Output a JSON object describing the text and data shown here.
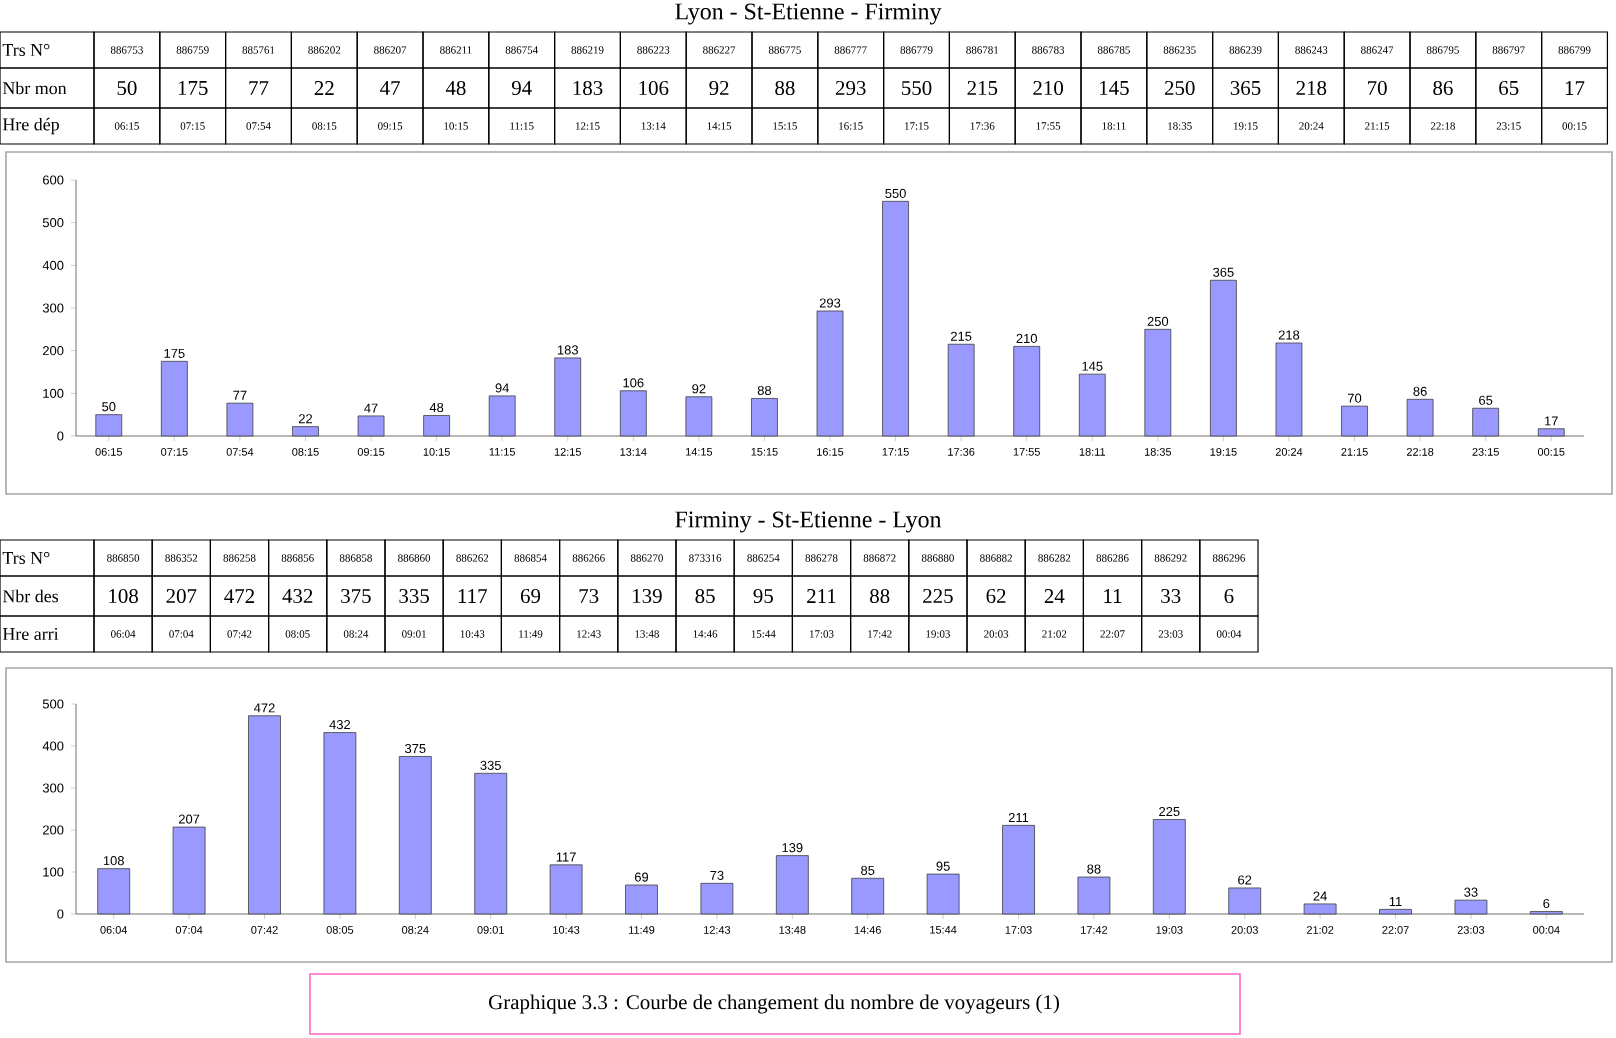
{
  "chart_data": [
    {
      "type": "bar",
      "title": "Lyon - St-Etienne - Firminy",
      "categories": [
        "06:15",
        "07:15",
        "07:54",
        "08:15",
        "09:15",
        "10:15",
        "11:15",
        "12:15",
        "13:14",
        "14:15",
        "15:15",
        "16:15",
        "17:15",
        "17:36",
        "17:55",
        "18:11",
        "18:35",
        "19:15",
        "20:24",
        "21:15",
        "22:18",
        "23:15",
        "00:15"
      ],
      "values": [
        50,
        175,
        77,
        22,
        47,
        48,
        94,
        183,
        106,
        92,
        88,
        293,
        550,
        215,
        210,
        145,
        250,
        365,
        218,
        70,
        86,
        65,
        17
      ],
      "color": "#9999ff",
      "ylim": [
        0,
        600
      ],
      "yticks": [
        0,
        100,
        200,
        300,
        400,
        500,
        600
      ],
      "data_labels": true,
      "annotations": [
        "Trs N°",
        "Nbr mon",
        "Hre dép",
        "886753",
        "886759",
        "885761",
        "886202",
        "886207",
        "886211",
        "886754",
        "886219",
        "886223",
        "886227",
        "886775",
        "886777",
        "886779",
        "886781",
        "886783",
        "886785",
        "886235",
        "886239",
        "886243",
        "886247",
        "886795",
        "886797",
        "886799",
        "50",
        "175",
        "77",
        "22",
        "47",
        "48",
        "94",
        "183",
        "106",
        "92",
        "88",
        "293",
        "550",
        "215",
        "210",
        "145",
        "250",
        "365",
        "218",
        "70",
        "86",
        "65",
        "17"
      ]
    },
    {
      "type": "bar",
      "title": "Firminy - St-Etienne - Lyon",
      "categories": [
        "06:04",
        "07:04",
        "07:42",
        "08:05",
        "08:24",
        "09:01",
        "10:43",
        "11:49",
        "12:43",
        "13:48",
        "14:46",
        "15:44",
        "17:03",
        "17:42",
        "19:03",
        "20:03",
        "21:02",
        "22:07",
        "23:03",
        "00:04"
      ],
      "values": [
        108,
        207,
        472,
        432,
        375,
        335,
        117,
        69,
        73,
        139,
        85,
        95,
        211,
        88,
        225,
        62,
        24,
        11,
        33,
        6
      ],
      "color": "#9999ff",
      "ylim": [
        0,
        500
      ],
      "yticks": [
        0,
        100,
        200,
        300,
        400,
        500
      ],
      "data_labels": true,
      "annotations": [
        "Trs N°",
        "Nbr des",
        "Hre arri",
        "886850",
        "886352",
        "886258",
        "886856",
        "886858",
        "886860",
        "886262",
        "886854",
        "886266",
        "886270",
        "873316",
        "886254",
        "886278",
        "886872",
        "886880",
        "886882",
        "886282",
        "886286",
        "886292",
        "886296",
        "108",
        "207",
        "472",
        "432",
        "375",
        "335",
        "117",
        "69",
        "73",
        "139",
        "85",
        "95",
        "211",
        "88",
        "225",
        "62",
        "24",
        "11",
        "33",
        "6",
        "Graphique 3.3 : Courbe de changement du nombre de voyageurs (1)"
      ]
    }
  ]
}
